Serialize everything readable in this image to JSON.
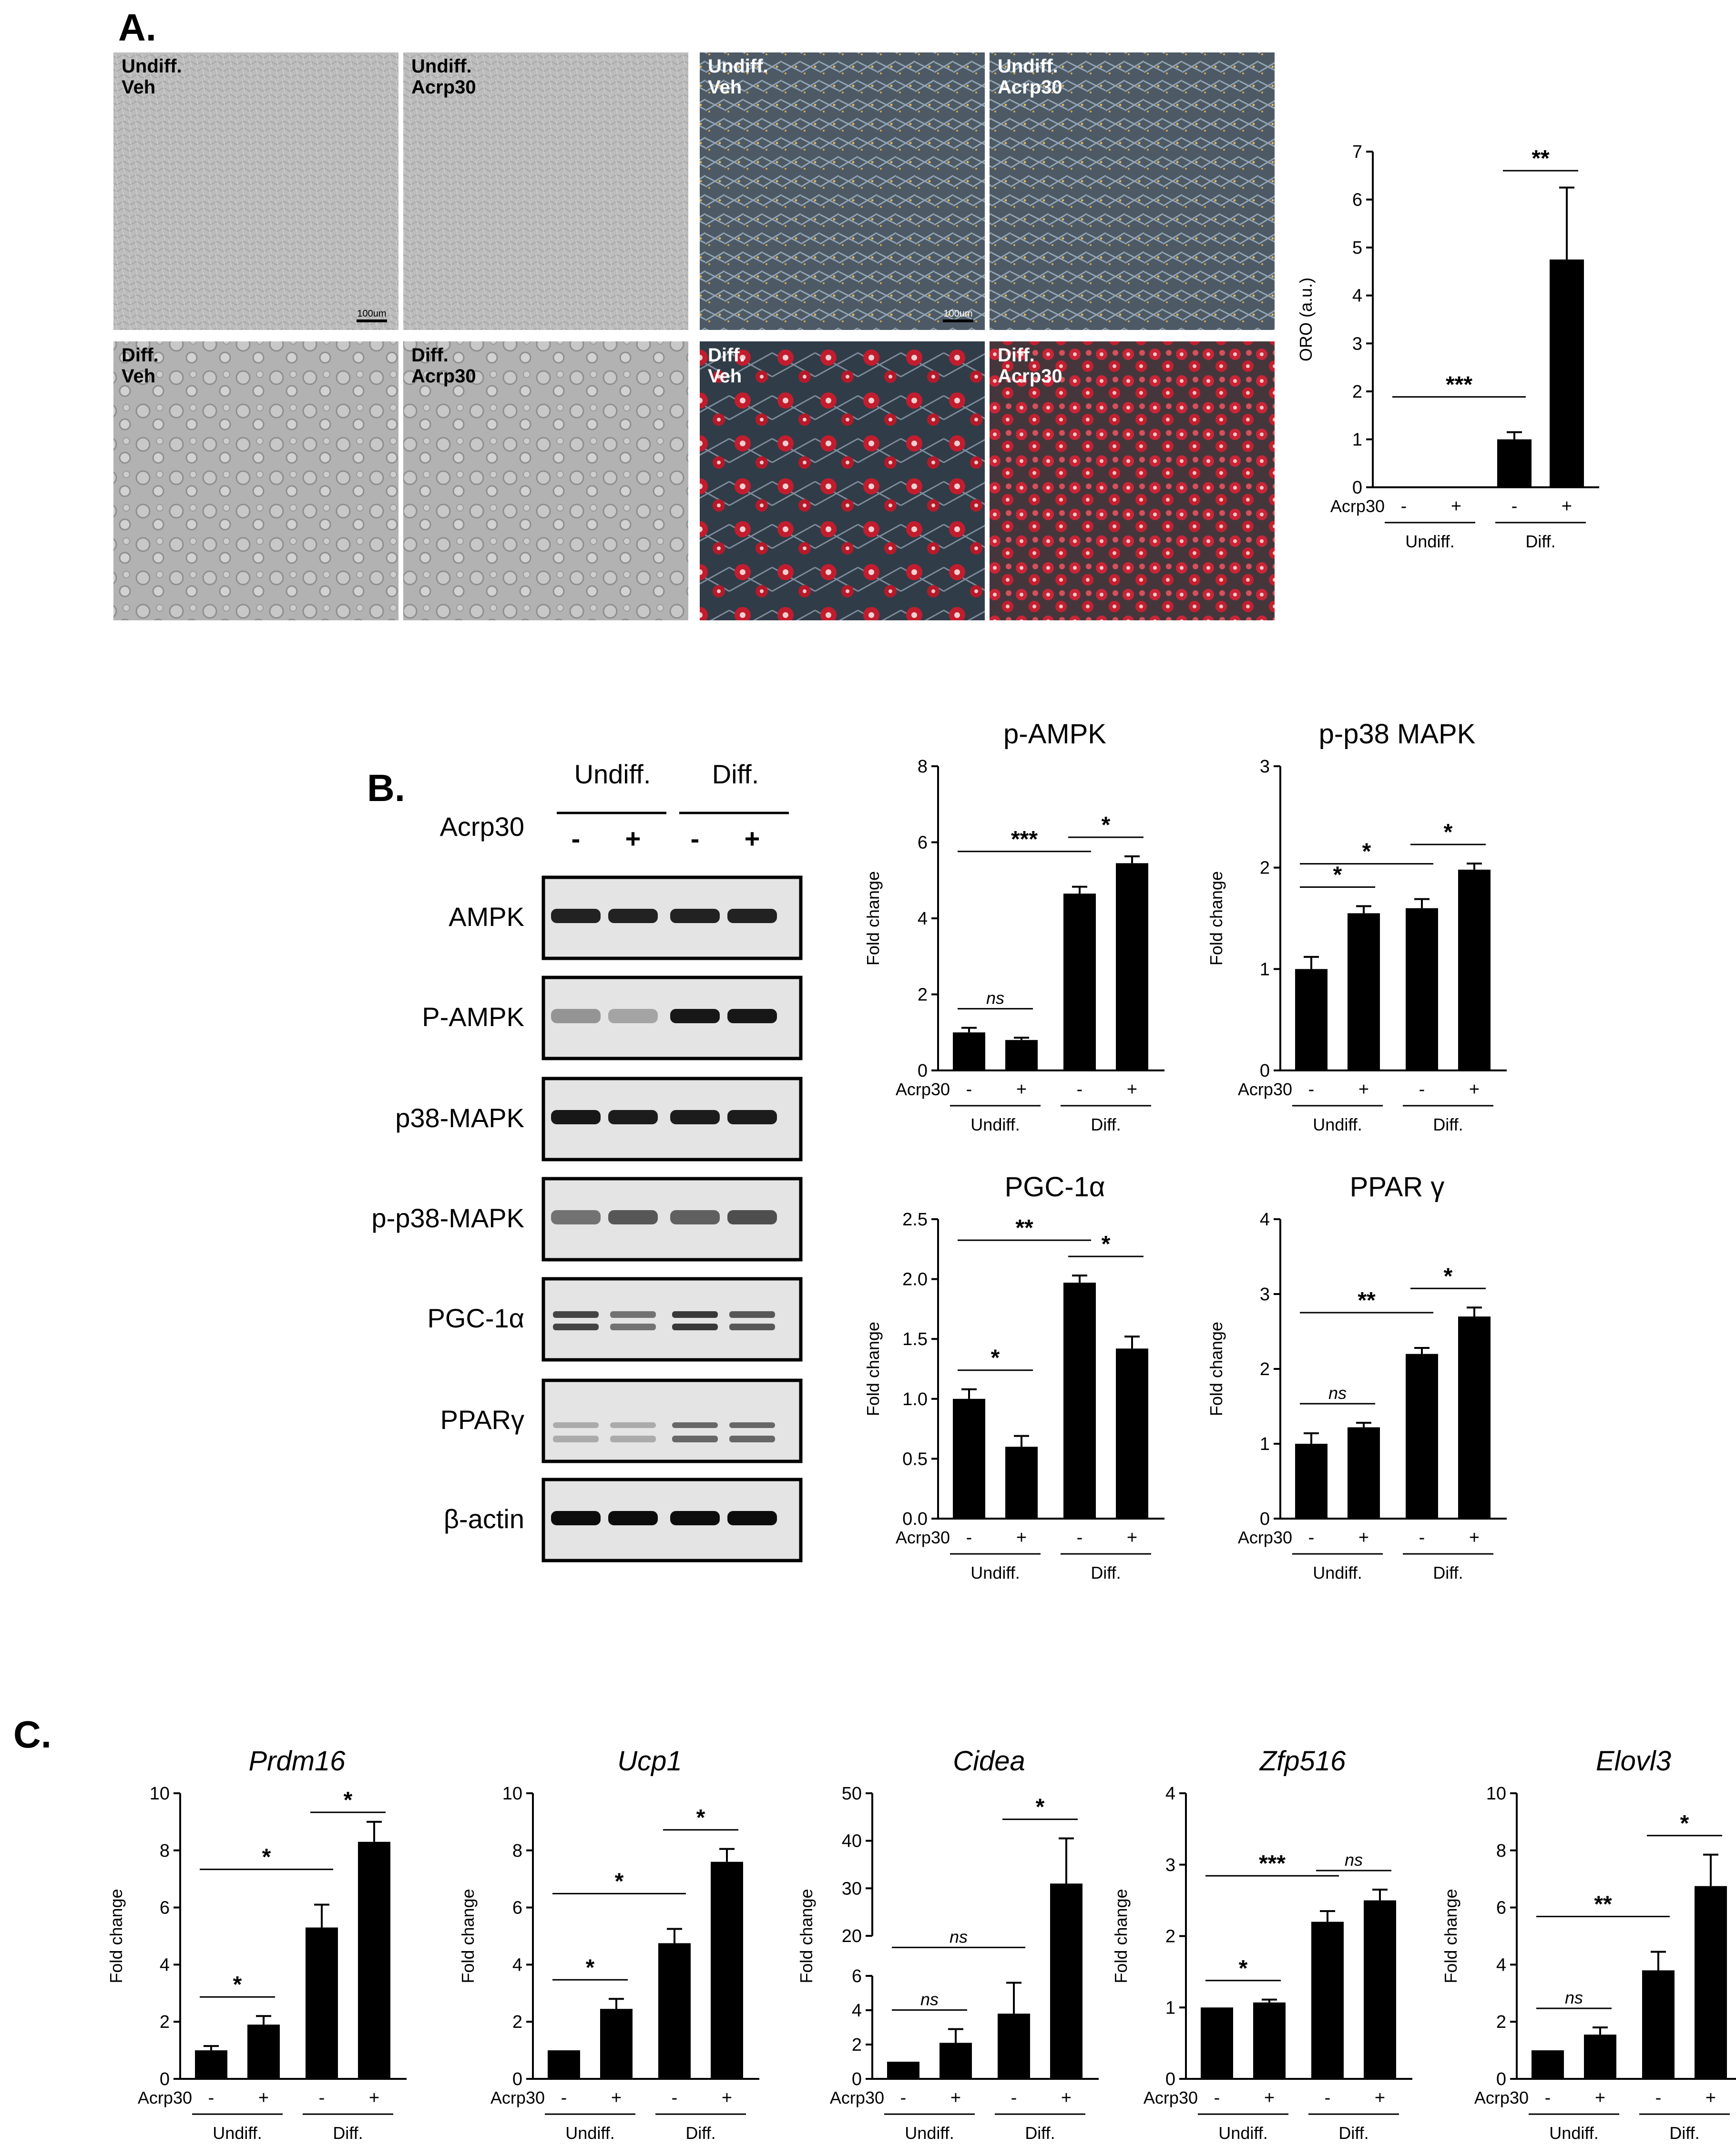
{
  "panels": {
    "a": "A.",
    "b": "B.",
    "c": "C."
  },
  "colors": {
    "bar": "#000000",
    "axis": "#000000"
  },
  "panel_a": {
    "microscopy_labels": [
      [
        "Undiff.",
        "Veh"
      ],
      [
        "Undiff.",
        "Acrp30"
      ],
      [
        "Undiff.",
        "Veh"
      ],
      [
        "Undiff.",
        "Acrp30"
      ],
      [
        "Diff.",
        "Veh"
      ],
      [
        "Diff.",
        "Acrp30"
      ],
      [
        "Diff.",
        "Veh"
      ],
      [
        "Diff.",
        "Acrp30"
      ]
    ],
    "scalebar_labels": [
      "100um",
      "100um"
    ]
  },
  "panel_b_blot": {
    "groups": [
      "Undiff.",
      "Diff."
    ],
    "treatment_label": "Acrp30",
    "treatments": [
      "-",
      "+",
      "-",
      "+"
    ],
    "proteins": [
      "AMPK",
      "P-AMPK",
      "p38-MAPK",
      "p-p38-MAPK",
      "PGC-1α",
      "PPARγ",
      "β-actin"
    ]
  },
  "chart_data": [
    {
      "type": "bar",
      "id": "oro",
      "title": "",
      "ylabel": "ORO  (a.u.)",
      "xlabel": "Acrp30",
      "categories": [
        "-",
        "+",
        "-",
        "+"
      ],
      "groups": [
        "Undiff.",
        "Diff."
      ],
      "values": [
        0,
        0,
        1.0,
        4.75
      ],
      "errors": [
        0,
        0,
        0.15,
        1.5
      ],
      "ylim": [
        0,
        7
      ],
      "yticks": [
        "0",
        "1",
        "2",
        "3",
        "4",
        "5",
        "6",
        "7"
      ],
      "significance": [
        {
          "from": 0,
          "to": 2,
          "label": "***"
        },
        {
          "from": 2,
          "to": 3,
          "label": "**"
        }
      ]
    },
    {
      "type": "bar",
      "id": "p-ampk",
      "title": "p-AMPK",
      "ylabel": "Fold change",
      "xlabel": "Acrp30",
      "categories": [
        "-",
        "+",
        "-",
        "+"
      ],
      "groups": [
        "Undiff.",
        "Diff."
      ],
      "values": [
        1.0,
        0.8,
        4.65,
        5.45
      ],
      "errors": [
        0.12,
        0.06,
        0.18,
        0.18
      ],
      "ylim": [
        0,
        8
      ],
      "yticks": [
        "0",
        "2",
        "4",
        "6",
        "8"
      ],
      "significance": [
        {
          "from": 0,
          "to": 1,
          "label": "ns"
        },
        {
          "from": 0,
          "to": 2,
          "label": "***"
        },
        {
          "from": 2,
          "to": 3,
          "label": "*"
        }
      ]
    },
    {
      "type": "bar",
      "id": "p-p38",
      "title": "p-p38 MAPK",
      "ylabel": "Fold change",
      "xlabel": "Acrp30",
      "categories": [
        "-",
        "+",
        "-",
        "+"
      ],
      "groups": [
        "Undiff.",
        "Diff."
      ],
      "values": [
        1.0,
        1.55,
        1.6,
        1.98
      ],
      "errors": [
        0.12,
        0.07,
        0.09,
        0.06
      ],
      "ylim": [
        0,
        3
      ],
      "yticks": [
        "0",
        "1",
        "2",
        "3"
      ],
      "significance": [
        {
          "from": 0,
          "to": 1,
          "label": "*"
        },
        {
          "from": 0,
          "to": 2,
          "label": "*"
        },
        {
          "from": 2,
          "to": 3,
          "label": "*"
        }
      ]
    },
    {
      "type": "bar",
      "id": "pgc1a",
      "title": "PGC-1α",
      "ylabel": "Fold change",
      "xlabel": "Acrp30",
      "categories": [
        "-",
        "+",
        "-",
        "+"
      ],
      "groups": [
        "Undiff.",
        "Diff."
      ],
      "values": [
        1.0,
        0.6,
        1.97,
        1.42
      ],
      "errors": [
        0.08,
        0.09,
        0.06,
        0.1
      ],
      "ylim": [
        0,
        2.5
      ],
      "yticks": [
        "0.0",
        "0.5",
        "1.0",
        "1.5",
        "2.0",
        "2.5"
      ],
      "significance": [
        {
          "from": 0,
          "to": 1,
          "label": "*"
        },
        {
          "from": 0,
          "to": 2,
          "label": "**"
        },
        {
          "from": 2,
          "to": 3,
          "label": "*"
        }
      ]
    },
    {
      "type": "bar",
      "id": "pparg",
      "title": "PPAR γ",
      "ylabel": "Fold change",
      "xlabel": "Acrp30",
      "categories": [
        "-",
        "+",
        "-",
        "+"
      ],
      "groups": [
        "Undiff.",
        "Diff."
      ],
      "values": [
        1.0,
        1.22,
        2.2,
        2.7
      ],
      "errors": [
        0.14,
        0.06,
        0.08,
        0.12
      ],
      "ylim": [
        0,
        4
      ],
      "yticks": [
        "0",
        "1",
        "2",
        "3",
        "4"
      ],
      "significance": [
        {
          "from": 0,
          "to": 1,
          "label": "ns"
        },
        {
          "from": 0,
          "to": 2,
          "label": "**"
        },
        {
          "from": 2,
          "to": 3,
          "label": "*"
        }
      ]
    },
    {
      "type": "bar",
      "id": "prdm16",
      "title": "Prdm16",
      "ylabel": "Fold change",
      "xlabel": "Acrp30",
      "categories": [
        "-",
        "+",
        "-",
        "+"
      ],
      "groups": [
        "Undiff.",
        "Diff."
      ],
      "values": [
        1.0,
        1.9,
        5.3,
        8.3
      ],
      "errors": [
        0.15,
        0.3,
        0.8,
        0.7
      ],
      "ylim": [
        0,
        10
      ],
      "yticks": [
        "0",
        "2",
        "4",
        "6",
        "8",
        "10"
      ],
      "significance": [
        {
          "from": 0,
          "to": 1,
          "label": "*"
        },
        {
          "from": 0,
          "to": 2,
          "label": "*"
        },
        {
          "from": 2,
          "to": 3,
          "label": "*"
        }
      ]
    },
    {
      "type": "bar",
      "id": "ucp1",
      "title": "Ucp1",
      "ylabel": "Fold change",
      "xlabel": "Acrp30",
      "categories": [
        "-",
        "+",
        "-",
        "+"
      ],
      "groups": [
        "Undiff.",
        "Diff."
      ],
      "values": [
        1.0,
        2.45,
        4.75,
        7.6
      ],
      "errors": [
        0,
        0.35,
        0.5,
        0.45
      ],
      "ylim": [
        0,
        10
      ],
      "yticks": [
        "0",
        "2",
        "4",
        "6",
        "8",
        "10"
      ],
      "significance": [
        {
          "from": 0,
          "to": 1,
          "label": "*"
        },
        {
          "from": 0,
          "to": 2,
          "label": "*"
        },
        {
          "from": 2,
          "to": 3,
          "label": "*"
        }
      ]
    },
    {
      "type": "bar",
      "id": "cidea",
      "title": "Cidea",
      "ylabel": "Fold change",
      "xlabel": "Acrp30",
      "categories": [
        "-",
        "+",
        "-",
        "+"
      ],
      "groups": [
        "Undiff.",
        "Diff."
      ],
      "values": [
        1.0,
        2.1,
        3.8,
        31.0
      ],
      "errors": [
        0,
        0.8,
        1.8,
        9.5
      ],
      "axis_break": {
        "lower": [
          0,
          6
        ],
        "upper": [
          20,
          50
        ]
      },
      "yticks_lower": [
        "0",
        "2",
        "4",
        "6"
      ],
      "yticks_upper": [
        "20",
        "30",
        "40",
        "50"
      ],
      "significance": [
        {
          "from": 0,
          "to": 1,
          "label": "ns"
        },
        {
          "from": 0,
          "to": 2,
          "label": "ns"
        },
        {
          "from": 2,
          "to": 3,
          "label": "*"
        }
      ]
    },
    {
      "type": "bar",
      "id": "zfp516",
      "title": "Zfp516",
      "ylabel": "Fold change",
      "xlabel": "Acrp30",
      "categories": [
        "-",
        "+",
        "-",
        "+"
      ],
      "groups": [
        "Undiff.",
        "Diff."
      ],
      "values": [
        1.0,
        1.07,
        2.2,
        2.5
      ],
      "errors": [
        0,
        0.04,
        0.15,
        0.15
      ],
      "ylim": [
        0,
        4
      ],
      "yticks": [
        "0",
        "1",
        "2",
        "3",
        "4"
      ],
      "significance": [
        {
          "from": 0,
          "to": 1,
          "label": "*"
        },
        {
          "from": 0,
          "to": 2,
          "label": "***"
        },
        {
          "from": 2,
          "to": 3,
          "label": "ns"
        }
      ]
    },
    {
      "type": "bar",
      "id": "elovl3",
      "title": "Elovl3",
      "ylabel": "Fold change",
      "xlabel": "Acrp30",
      "categories": [
        "-",
        "+",
        "-",
        "+"
      ],
      "groups": [
        "Undiff.",
        "Diff."
      ],
      "values": [
        1.0,
        1.55,
        3.8,
        6.75
      ],
      "errors": [
        0,
        0.25,
        0.65,
        1.1
      ],
      "ylim": [
        0,
        10
      ],
      "yticks": [
        "0",
        "2",
        "4",
        "6",
        "8",
        "10"
      ],
      "significance": [
        {
          "from": 0,
          "to": 1,
          "label": "ns"
        },
        {
          "from": 0,
          "to": 2,
          "label": "**"
        },
        {
          "from": 2,
          "to": 3,
          "label": "*"
        }
      ]
    }
  ]
}
